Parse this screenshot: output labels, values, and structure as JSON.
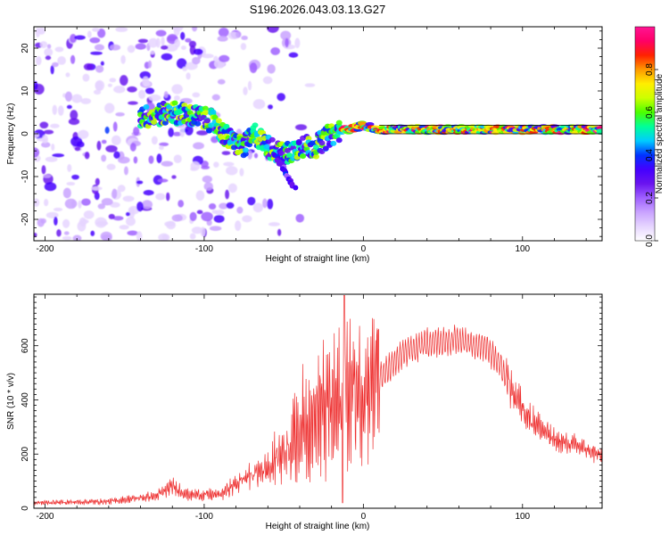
{
  "title": "S196.2026.043.03.13.G27",
  "colors": {
    "spectrogram_ramp": [
      "#ffffff",
      "#e6d5ff",
      "#c9a3ff",
      "#a060ff",
      "#6a14ef",
      "#4400ff",
      "#0033ff",
      "#00ccff",
      "#00ff99",
      "#4bff00",
      "#ccff00",
      "#ffee00",
      "#ff9900",
      "#ff2200",
      "#ff0066",
      "#ff1493"
    ],
    "snr_line": "#ee3030",
    "axis": "#000000"
  },
  "chart_data": [
    {
      "type": "heatmap",
      "name": "spectrogram",
      "xlabel": "Height of straight line (km)",
      "ylabel": "Frequency (Hz)",
      "xlim": [
        -207,
        150
      ],
      "ylim": [
        -25,
        25
      ],
      "xticks": [
        -200,
        -100,
        0,
        100
      ],
      "yticks": [
        -20,
        -10,
        0,
        10,
        20
      ],
      "ridge_path": [
        {
          "x": -135,
          "y": 4
        },
        {
          "x": -120,
          "y": 5
        },
        {
          "x": -105,
          "y": 4
        },
        {
          "x": -95,
          "y": 3
        },
        {
          "x": -88,
          "y": 0
        },
        {
          "x": -82,
          "y": -2
        },
        {
          "x": -75,
          "y": -3
        },
        {
          "x": -68,
          "y": 0
        },
        {
          "x": -60,
          "y": -3
        },
        {
          "x": -50,
          "y": -5
        },
        {
          "x": -40,
          "y": -3
        },
        {
          "x": -30,
          "y": -3
        },
        {
          "x": -20,
          "y": 0
        },
        {
          "x": -10,
          "y": 1
        },
        {
          "x": 0,
          "y": 2
        },
        {
          "x": 10,
          "y": 1
        },
        {
          "x": 30,
          "y": 1
        },
        {
          "x": 60,
          "y": 1
        },
        {
          "x": 90,
          "y": 1
        },
        {
          "x": 120,
          "y": 1
        },
        {
          "x": 150,
          "y": 1
        }
      ],
      "reference_band_hz": [
        0,
        2
      ],
      "colorbar": {
        "label": "Normalized spectral amplitude",
        "range": [
          0.0,
          1.0
        ],
        "ticks": [
          "0.0",
          "0.2",
          "0.4",
          "0.6",
          "0.8"
        ]
      }
    },
    {
      "type": "line",
      "name": "snr",
      "xlabel": "Height of straight line (km)",
      "ylabel": "SNR (10 * v/v)",
      "xlim": [
        -207,
        150
      ],
      "ylim": [
        0,
        790
      ],
      "xticks": [
        -200,
        -100,
        0,
        100
      ],
      "yticks": [
        0,
        200,
        400,
        600
      ],
      "envelope": [
        {
          "x": -207,
          "y": 20
        },
        {
          "x": -160,
          "y": 25
        },
        {
          "x": -130,
          "y": 45
        },
        {
          "x": -120,
          "y": 80
        },
        {
          "x": -110,
          "y": 50
        },
        {
          "x": -90,
          "y": 50
        },
        {
          "x": -75,
          "y": 110
        },
        {
          "x": -60,
          "y": 150
        },
        {
          "x": -45,
          "y": 250
        },
        {
          "x": -35,
          "y": 320
        },
        {
          "x": -25,
          "y": 360
        },
        {
          "x": -15,
          "y": 380
        },
        {
          "x": -5,
          "y": 440
        },
        {
          "x": 10,
          "y": 480
        },
        {
          "x": 25,
          "y": 570
        },
        {
          "x": 40,
          "y": 610
        },
        {
          "x": 60,
          "y": 620
        },
        {
          "x": 75,
          "y": 600
        },
        {
          "x": 85,
          "y": 540
        },
        {
          "x": 95,
          "y": 420
        },
        {
          "x": 105,
          "y": 330
        },
        {
          "x": 120,
          "y": 250
        },
        {
          "x": 135,
          "y": 230
        },
        {
          "x": 150,
          "y": 190
        }
      ],
      "peak": {
        "x": -12,
        "y": 785
      },
      "dropout": {
        "x": -13,
        "y": 20
      }
    }
  ]
}
